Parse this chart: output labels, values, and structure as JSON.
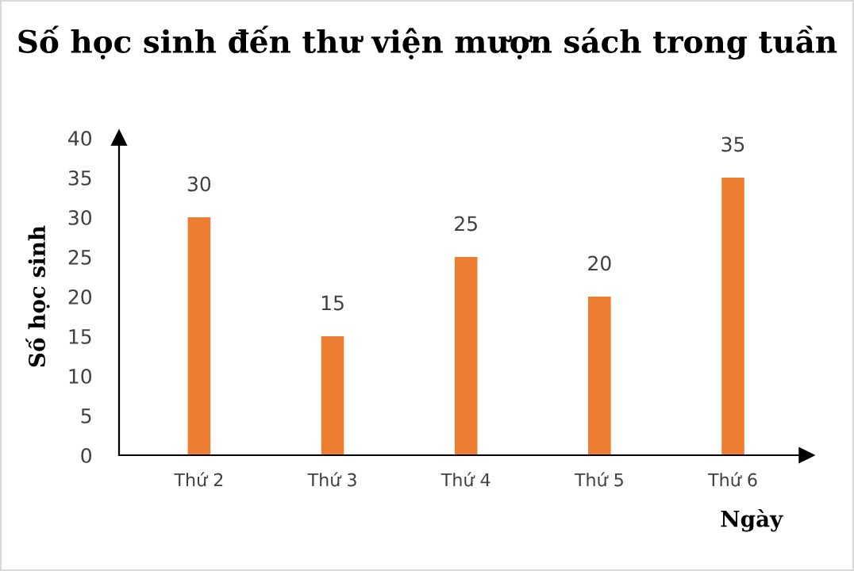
{
  "chart_data": {
    "type": "bar",
    "title": "Số học sinh đến thư viện mượn sách trong tuần",
    "xlabel": "Ngày",
    "ylabel": "Số học sinh",
    "categories": [
      "Thứ 2",
      "Thứ 3",
      "Thứ 4",
      "Thứ 5",
      "Thứ 6"
    ],
    "values": [
      30,
      15,
      25,
      20,
      35
    ],
    "color": "#ed7d31",
    "ylim": [
      0,
      40
    ],
    "yticks": [
      0,
      5,
      10,
      15,
      20,
      25,
      30,
      35,
      40
    ],
    "grid": false,
    "data_labels": true
  }
}
